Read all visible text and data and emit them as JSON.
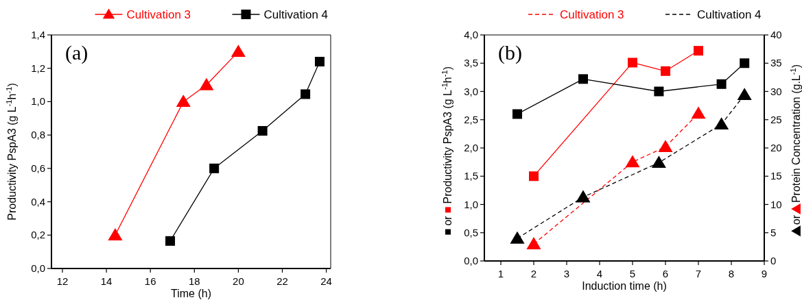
{
  "chart_data": [
    {
      "type": "line",
      "xlabel": "Time (h)",
      "ylabel": "Productivity PspA3 (g L$^{-1}$h$^{-1}$)",
      "annotations": [
        "(a)"
      ],
      "legend": "top",
      "xlim": [
        11.5,
        24.2
      ],
      "xticks": [
        12,
        14,
        16,
        18,
        20,
        22,
        24
      ],
      "ylim": [
        0,
        1.4
      ],
      "yticks": [
        {
          "value": 0,
          "label": "0,0"
        },
        {
          "value": 0.2,
          "label": "0,2"
        },
        {
          "value": 0.4,
          "label": "0,4"
        },
        {
          "value": 0.6,
          "label": "0,6"
        },
        {
          "value": 0.8,
          "label": "0,8"
        },
        {
          "value": 1.0,
          "label": "1,0"
        },
        {
          "value": 1.2,
          "label": "1,2"
        },
        {
          "value": 1.4,
          "label": "1,4"
        }
      ],
      "series": [
        {
          "name": "Cultivation 3",
          "color": "#ff0000",
          "marker": "triangle",
          "line_style": "solid",
          "x": [
            14.4,
            17.5,
            18.55,
            20
          ],
          "values": [
            0.2,
            1.0,
            1.1,
            1.3
          ]
        },
        {
          "name": "Cultivation 4",
          "color": "#000000",
          "marker": "square",
          "line_style": "solid",
          "x": [
            16.9,
            18.9,
            21.1,
            23.05,
            23.7
          ],
          "values": [
            0.165,
            0.6,
            0.825,
            1.045,
            1.24
          ]
        }
      ]
    },
    {
      "type": "line",
      "xlabel": "Induction time (h)",
      "ylabel": "or Productivity PspA3 (g L$^{-1}$h$^{-1}$)",
      "y2label": "or Protein Concentration (g.L$^{-1}$)",
      "annotations": [
        "(b)"
      ],
      "legend": "top",
      "xlim": [
        0.5,
        9
      ],
      "xticks": [
        1,
        2,
        3,
        4,
        5,
        6,
        7,
        8,
        9
      ],
      "ylim": [
        0,
        4
      ],
      "yticks": [
        {
          "value": 0,
          "label": "0,0"
        },
        {
          "value": 0.5,
          "label": "0,5"
        },
        {
          "value": 1.0,
          "label": "1,0"
        },
        {
          "value": 1.5,
          "label": "1,5"
        },
        {
          "value": 2.0,
          "label": "2,0"
        },
        {
          "value": 2.5,
          "label": "2,5"
        },
        {
          "value": 3.0,
          "label": "3,0"
        },
        {
          "value": 3.5,
          "label": "3,5"
        },
        {
          "value": 4.0,
          "label": "4,0"
        }
      ],
      "y2lim": [
        0,
        40
      ],
      "y2ticks": [
        0,
        5,
        10,
        15,
        20,
        25,
        30,
        35,
        40
      ],
      "series": [
        {
          "color": "#ff0000",
          "marker": "square",
          "line_style": "solid",
          "x": [
            2,
            5,
            6,
            7
          ],
          "values": [
            1.5,
            3.51,
            3.36,
            3.72
          ]
        },
        {
          "color": "#000000",
          "marker": "square",
          "line_style": "solid",
          "x": [
            1.5,
            3.5,
            5.8,
            7.7,
            8.4
          ],
          "values": [
            2.6,
            3.22,
            3.0,
            3.13,
            3.5
          ]
        },
        {
          "name": "Cultivation 3",
          "color": "#ff0000",
          "marker": "triangle",
          "line_style": "dashed",
          "axis": "y2",
          "x": [
            2,
            5,
            6,
            7
          ],
          "values": [
            3,
            17.5,
            20.2,
            26.1
          ]
        },
        {
          "name": "Cultivation 4",
          "color": "#000000",
          "marker": "triangle",
          "line_style": "dashed",
          "axis": "y2",
          "x": [
            1.5,
            3.5,
            5.8,
            7.7,
            8.4
          ],
          "values": [
            4,
            11.3,
            17.4,
            24.2,
            29.4
          ]
        }
      ]
    }
  ]
}
